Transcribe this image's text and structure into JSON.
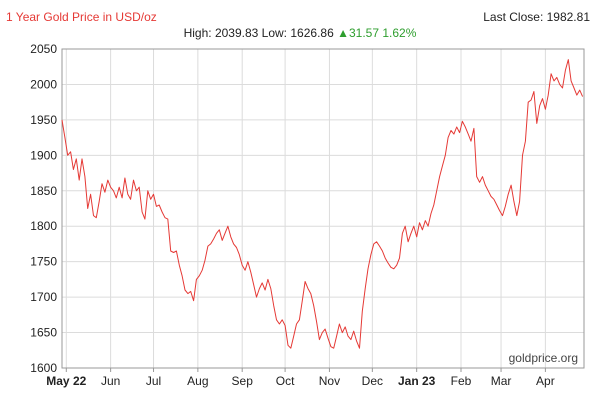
{
  "chart_data": {
    "type": "line",
    "title": "1 Year Gold Price in USD/oz",
    "last_close": "Last Close: 1982.81",
    "stats": {
      "high_label": "High:",
      "high": "2039.83",
      "low_label": "Low:",
      "low": "1626.86",
      "change_arrow": "▲",
      "change": "31.57",
      "change_pct": "1.62%"
    },
    "watermark": "goldprice.org",
    "ylim": [
      1600,
      2050
    ],
    "y_ticks": [
      1600,
      1650,
      1700,
      1750,
      1800,
      1850,
      1900,
      1950,
      2000,
      2050
    ],
    "x_range": [
      "2022-04-28",
      "2023-04-28"
    ],
    "x_ticks": [
      {
        "label": "May 22",
        "date": "2022-05-01",
        "bold": true
      },
      {
        "label": "Jun",
        "date": "2022-06-01",
        "bold": false
      },
      {
        "label": "Jul",
        "date": "2022-07-01",
        "bold": false
      },
      {
        "label": "Aug",
        "date": "2022-08-01",
        "bold": false
      },
      {
        "label": "Sep",
        "date": "2022-09-01",
        "bold": false
      },
      {
        "label": "Oct",
        "date": "2022-10-01",
        "bold": false
      },
      {
        "label": "Nov",
        "date": "2022-11-01",
        "bold": false
      },
      {
        "label": "Dec",
        "date": "2022-12-01",
        "bold": false
      },
      {
        "label": "Jan 23",
        "date": "2023-01-01",
        "bold": true
      },
      {
        "label": "Feb",
        "date": "2023-02-01",
        "bold": false
      },
      {
        "label": "Mar",
        "date": "2023-03-01",
        "bold": false
      },
      {
        "label": "Apr",
        "date": "2023-04-01",
        "bold": false
      }
    ],
    "grid": true,
    "line_color": "#e53935",
    "series": [
      {
        "points": [
          [
            "2022-04-28",
            1950
          ],
          [
            "2022-04-30",
            1925
          ],
          [
            "2022-05-02",
            1900
          ],
          [
            "2022-05-04",
            1905
          ],
          [
            "2022-05-06",
            1880
          ],
          [
            "2022-05-08",
            1895
          ],
          [
            "2022-05-10",
            1865
          ],
          [
            "2022-05-12",
            1895
          ],
          [
            "2022-05-14",
            1870
          ],
          [
            "2022-05-16",
            1825
          ],
          [
            "2022-05-18",
            1845
          ],
          [
            "2022-05-20",
            1815
          ],
          [
            "2022-05-22",
            1812
          ],
          [
            "2022-05-24",
            1835
          ],
          [
            "2022-05-26",
            1860
          ],
          [
            "2022-05-28",
            1848
          ],
          [
            "2022-05-30",
            1865
          ],
          [
            "2022-06-01",
            1855
          ],
          [
            "2022-06-03",
            1850
          ],
          [
            "2022-06-05",
            1840
          ],
          [
            "2022-06-07",
            1855
          ],
          [
            "2022-06-09",
            1840
          ],
          [
            "2022-06-11",
            1868
          ],
          [
            "2022-06-13",
            1845
          ],
          [
            "2022-06-15",
            1838
          ],
          [
            "2022-06-17",
            1865
          ],
          [
            "2022-06-19",
            1850
          ],
          [
            "2022-06-21",
            1855
          ],
          [
            "2022-06-23",
            1820
          ],
          [
            "2022-06-25",
            1810
          ],
          [
            "2022-06-27",
            1850
          ],
          [
            "2022-06-29",
            1838
          ],
          [
            "2022-07-01",
            1845
          ],
          [
            "2022-07-03",
            1828
          ],
          [
            "2022-07-05",
            1830
          ],
          [
            "2022-07-07",
            1820
          ],
          [
            "2022-07-09",
            1812
          ],
          [
            "2022-07-11",
            1810
          ],
          [
            "2022-07-13",
            1765
          ],
          [
            "2022-07-15",
            1763
          ],
          [
            "2022-07-17",
            1765
          ],
          [
            "2022-07-19",
            1745
          ],
          [
            "2022-07-21",
            1730
          ],
          [
            "2022-07-23",
            1710
          ],
          [
            "2022-07-25",
            1705
          ],
          [
            "2022-07-27",
            1708
          ],
          [
            "2022-07-29",
            1695
          ],
          [
            "2022-07-31",
            1725
          ],
          [
            "2022-08-02",
            1730
          ],
          [
            "2022-08-04",
            1738
          ],
          [
            "2022-08-06",
            1752
          ],
          [
            "2022-08-08",
            1772
          ],
          [
            "2022-08-10",
            1775
          ],
          [
            "2022-08-12",
            1782
          ],
          [
            "2022-08-14",
            1790
          ],
          [
            "2022-08-16",
            1795
          ],
          [
            "2022-08-18",
            1780
          ],
          [
            "2022-08-20",
            1790
          ],
          [
            "2022-08-22",
            1800
          ],
          [
            "2022-08-24",
            1785
          ],
          [
            "2022-08-26",
            1775
          ],
          [
            "2022-08-28",
            1770
          ],
          [
            "2022-08-30",
            1760
          ],
          [
            "2022-09-01",
            1745
          ],
          [
            "2022-09-03",
            1738
          ],
          [
            "2022-09-05",
            1750
          ],
          [
            "2022-09-07",
            1735
          ],
          [
            "2022-09-09",
            1718
          ],
          [
            "2022-09-11",
            1700
          ],
          [
            "2022-09-13",
            1712
          ],
          [
            "2022-09-15",
            1720
          ],
          [
            "2022-09-17",
            1710
          ],
          [
            "2022-09-19",
            1725
          ],
          [
            "2022-09-21",
            1712
          ],
          [
            "2022-09-23",
            1688
          ],
          [
            "2022-09-25",
            1668
          ],
          [
            "2022-09-27",
            1662
          ],
          [
            "2022-09-29",
            1668
          ],
          [
            "2022-10-01",
            1660
          ],
          [
            "2022-10-03",
            1632
          ],
          [
            "2022-10-05",
            1628
          ],
          [
            "2022-10-07",
            1645
          ],
          [
            "2022-10-09",
            1662
          ],
          [
            "2022-10-11",
            1668
          ],
          [
            "2022-10-13",
            1695
          ],
          [
            "2022-10-15",
            1722
          ],
          [
            "2022-10-17",
            1712
          ],
          [
            "2022-10-19",
            1705
          ],
          [
            "2022-10-21",
            1688
          ],
          [
            "2022-10-23",
            1665
          ],
          [
            "2022-10-25",
            1640
          ],
          [
            "2022-10-27",
            1650
          ],
          [
            "2022-10-29",
            1655
          ],
          [
            "2022-10-31",
            1642
          ],
          [
            "2022-11-02",
            1630
          ],
          [
            "2022-11-04",
            1628
          ],
          [
            "2022-11-06",
            1645
          ],
          [
            "2022-11-08",
            1662
          ],
          [
            "2022-11-10",
            1650
          ],
          [
            "2022-11-12",
            1658
          ],
          [
            "2022-11-14",
            1645
          ],
          [
            "2022-11-16",
            1640
          ],
          [
            "2022-11-18",
            1652
          ],
          [
            "2022-11-20",
            1638
          ],
          [
            "2022-11-22",
            1628
          ],
          [
            "2022-11-24",
            1680
          ],
          [
            "2022-11-26",
            1712
          ],
          [
            "2022-11-28",
            1740
          ],
          [
            "2022-11-30",
            1760
          ],
          [
            "2022-12-02",
            1775
          ],
          [
            "2022-12-04",
            1778
          ],
          [
            "2022-12-06",
            1772
          ],
          [
            "2022-12-08",
            1765
          ],
          [
            "2022-12-10",
            1755
          ],
          [
            "2022-12-12",
            1748
          ],
          [
            "2022-12-14",
            1742
          ],
          [
            "2022-12-16",
            1740
          ],
          [
            "2022-12-18",
            1745
          ],
          [
            "2022-12-20",
            1755
          ],
          [
            "2022-12-22",
            1790
          ],
          [
            "2022-12-24",
            1800
          ],
          [
            "2022-12-26",
            1778
          ],
          [
            "2022-12-28",
            1790
          ],
          [
            "2022-12-30",
            1800
          ],
          [
            "2023-01-01",
            1785
          ],
          [
            "2023-01-03",
            1805
          ],
          [
            "2023-01-05",
            1795
          ],
          [
            "2023-01-07",
            1808
          ],
          [
            "2023-01-09",
            1800
          ],
          [
            "2023-01-11",
            1818
          ],
          [
            "2023-01-13",
            1830
          ],
          [
            "2023-01-15",
            1850
          ],
          [
            "2023-01-17",
            1870
          ],
          [
            "2023-01-19",
            1885
          ],
          [
            "2023-01-21",
            1900
          ],
          [
            "2023-01-23",
            1925
          ],
          [
            "2023-01-25",
            1935
          ],
          [
            "2023-01-27",
            1930
          ],
          [
            "2023-01-29",
            1940
          ],
          [
            "2023-01-31",
            1932
          ],
          [
            "2023-02-02",
            1948
          ],
          [
            "2023-02-04",
            1940
          ],
          [
            "2023-02-06",
            1930
          ],
          [
            "2023-02-08",
            1920
          ],
          [
            "2023-02-10",
            1938
          ],
          [
            "2023-02-12",
            1870
          ],
          [
            "2023-02-14",
            1862
          ],
          [
            "2023-02-16",
            1870
          ],
          [
            "2023-02-18",
            1858
          ],
          [
            "2023-02-20",
            1850
          ],
          [
            "2023-02-22",
            1842
          ],
          [
            "2023-02-24",
            1838
          ],
          [
            "2023-02-26",
            1830
          ],
          [
            "2023-02-28",
            1822
          ],
          [
            "2023-03-02",
            1815
          ],
          [
            "2023-03-04",
            1828
          ],
          [
            "2023-03-06",
            1845
          ],
          [
            "2023-03-08",
            1858
          ],
          [
            "2023-03-10",
            1835
          ],
          [
            "2023-03-12",
            1815
          ],
          [
            "2023-03-14",
            1835
          ],
          [
            "2023-03-16",
            1900
          ],
          [
            "2023-03-18",
            1920
          ],
          [
            "2023-03-20",
            1975
          ],
          [
            "2023-03-22",
            1978
          ],
          [
            "2023-03-24",
            1990
          ],
          [
            "2023-03-26",
            1945
          ],
          [
            "2023-03-28",
            1970
          ],
          [
            "2023-03-30",
            1980
          ],
          [
            "2023-04-01",
            1965
          ],
          [
            "2023-04-03",
            1985
          ],
          [
            "2023-04-05",
            2015
          ],
          [
            "2023-04-07",
            2005
          ],
          [
            "2023-04-09",
            2010
          ],
          [
            "2023-04-11",
            2000
          ],
          [
            "2023-04-13",
            1995
          ],
          [
            "2023-04-15",
            2020
          ],
          [
            "2023-04-17",
            2035
          ],
          [
            "2023-04-19",
            2005
          ],
          [
            "2023-04-21",
            1995
          ],
          [
            "2023-04-23",
            1985
          ],
          [
            "2023-04-25",
            1992
          ],
          [
            "2023-04-27",
            1982.81
          ]
        ]
      }
    ]
  }
}
